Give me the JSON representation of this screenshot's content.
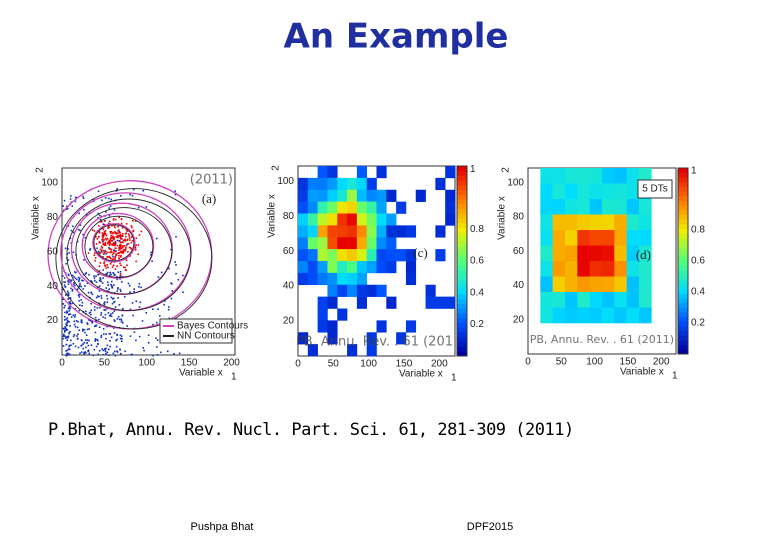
{
  "title": "An Example",
  "panels": [
    {
      "label": "(a)",
      "watermark": "(2011)",
      "x_label": "Variable x",
      "x_sub": "1",
      "y_label": "Variable x",
      "y_sub": "2",
      "x_ticks": [
        "0",
        "50",
        "100",
        "150",
        "200"
      ],
      "y_ticks": [
        "20",
        "40",
        "60",
        "80",
        "100"
      ],
      "legend": [
        "Bayes Contours",
        "NN Contours"
      ]
    },
    {
      "label": "(c)",
      "watermark": "PB, Annu. Rev. . 61 (201",
      "x_label": "Variable x",
      "x_sub": "1",
      "y_label": "Variable x",
      "y_sub": "2",
      "x_ticks": [
        "0",
        "50",
        "100",
        "150",
        "200"
      ],
      "y_ticks": [
        "20",
        "40",
        "60",
        "80",
        "100"
      ],
      "color_ticks": [
        "0.2",
        "0.4",
        "0.6",
        "0.8",
        "1"
      ]
    },
    {
      "label": "(d)",
      "watermark": "PB, Annu. Rev. . 61 (2011)",
      "x_label": "Variable x",
      "x_sub": "1",
      "y_label": "Variable x",
      "y_sub": "2",
      "x_ticks": [
        "0",
        "50",
        "100",
        "150",
        "200"
      ],
      "y_ticks": [
        "20",
        "40",
        "60",
        "80",
        "100"
      ],
      "color_ticks": [
        "0.2",
        "0.4",
        "0.6",
        "0.8",
        "1"
      ],
      "box": "5 DTs"
    }
  ],
  "citation": "P.Bhat, Annu. Rev. Nucl. Part. Sci. 61, 281-309 (2011)",
  "footer": {
    "left": "Pushpa Bhat",
    "right": "DPF2015"
  }
}
